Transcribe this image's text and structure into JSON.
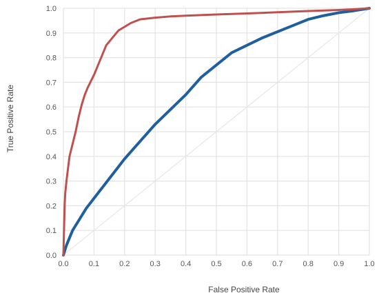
{
  "chart_data": {
    "type": "line",
    "title": "",
    "xlabel": "False Positive Rate",
    "ylabel": "True Positive Rate",
    "xlim": [
      0,
      1
    ],
    "ylim": [
      0,
      1
    ],
    "x_ticks": [
      "0.0",
      "0.1",
      "0.2",
      "0.3",
      "0.4",
      "0.5",
      "0.6",
      "0.7",
      "0.8",
      "0.9",
      "1.0"
    ],
    "y_ticks": [
      "0.0",
      "0.1",
      "0.2",
      "0.3",
      "0.4",
      "0.5",
      "0.6",
      "0.7",
      "0.8",
      "0.9",
      "1.0"
    ],
    "grid": true,
    "legend": "none",
    "series": [
      {
        "color": "#c0504d",
        "x": [
          0.0,
          0.002,
          0.004,
          0.006,
          0.01,
          0.015,
          0.02,
          0.03,
          0.04,
          0.05,
          0.06,
          0.07,
          0.08,
          0.1,
          0.12,
          0.14,
          0.16,
          0.18,
          0.2,
          0.22,
          0.25,
          0.3,
          0.35,
          0.4,
          0.5,
          0.6,
          0.7,
          0.8,
          0.9,
          0.95,
          1.0
        ],
        "y": [
          0.0,
          0.1,
          0.2,
          0.25,
          0.3,
          0.35,
          0.4,
          0.45,
          0.5,
          0.56,
          0.61,
          0.65,
          0.68,
          0.73,
          0.79,
          0.85,
          0.88,
          0.91,
          0.925,
          0.94,
          0.955,
          0.962,
          0.967,
          0.97,
          0.975,
          0.979,
          0.984,
          0.989,
          0.993,
          0.996,
          1.0
        ]
      },
      {
        "color": "#1f5f9e",
        "x": [
          0.0,
          0.005,
          0.01,
          0.02,
          0.03,
          0.05,
          0.075,
          0.1,
          0.15,
          0.2,
          0.25,
          0.3,
          0.35,
          0.4,
          0.45,
          0.5,
          0.55,
          0.6,
          0.65,
          0.7,
          0.75,
          0.8,
          0.85,
          0.9,
          0.95,
          1.0
        ],
        "y": [
          0.0,
          0.02,
          0.04,
          0.07,
          0.1,
          0.14,
          0.19,
          0.23,
          0.31,
          0.39,
          0.46,
          0.53,
          0.59,
          0.65,
          0.72,
          0.77,
          0.82,
          0.85,
          0.88,
          0.905,
          0.93,
          0.955,
          0.97,
          0.982,
          0.99,
          1.0
        ]
      },
      {
        "color": "#e6e6e6",
        "x": [
          0.0,
          1.0
        ],
        "y": [
          0.0,
          1.0
        ]
      }
    ]
  }
}
